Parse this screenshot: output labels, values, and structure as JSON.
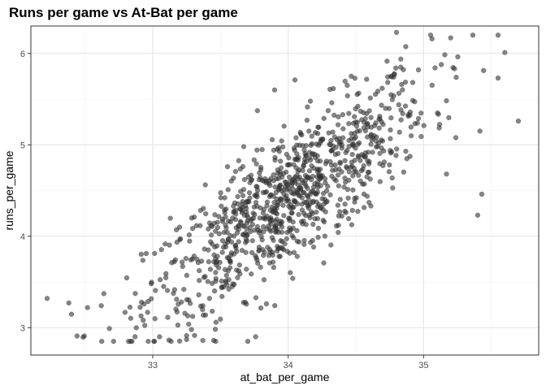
{
  "chart_data": {
    "type": "scatter",
    "title": "Runs per game vs At-Bat per game",
    "xlabel": "at_bat_per_game",
    "ylabel": "runs_per_game",
    "xlim": [
      32.1,
      35.85
    ],
    "ylim": [
      2.7,
      6.3
    ],
    "xticks": [
      33,
      34,
      35
    ],
    "xtick_labels": [
      "33",
      "34",
      "35"
    ],
    "yticks": [
      3,
      4,
      5,
      6
    ],
    "ytick_labels": [
      "3",
      "4",
      "5",
      "6"
    ],
    "grid": true,
    "legend": "none",
    "point_color": "#333333",
    "point_opacity": 0.6,
    "n_points": 1000,
    "trend": {
      "x_mean": 34.0,
      "y_mean": 4.4,
      "slope": 1.05
    },
    "outliers": [
      {
        "x": 32.22,
        "y": 3.32
      },
      {
        "x": 32.38,
        "y": 3.27
      },
      {
        "x": 32.62,
        "y": 3.24
      },
      {
        "x": 32.68,
        "y": 2.99
      },
      {
        "x": 33.37,
        "y": 2.86
      },
      {
        "x": 33.45,
        "y": 2.86
      },
      {
        "x": 33.25,
        "y": 2.87
      },
      {
        "x": 33.05,
        "y": 2.9
      },
      {
        "x": 33.76,
        "y": 2.9
      },
      {
        "x": 34.8,
        "y": 6.23
      },
      {
        "x": 35.2,
        "y": 6.17
      },
      {
        "x": 35.6,
        "y": 6.01
      },
      {
        "x": 35.7,
        "y": 5.26
      },
      {
        "x": 35.55,
        "y": 5.73
      },
      {
        "x": 35.43,
        "y": 4.46
      },
      {
        "x": 35.4,
        "y": 4.23
      },
      {
        "x": 33.9,
        "y": 5.6
      },
      {
        "x": 34.05,
        "y": 5.71
      }
    ]
  }
}
